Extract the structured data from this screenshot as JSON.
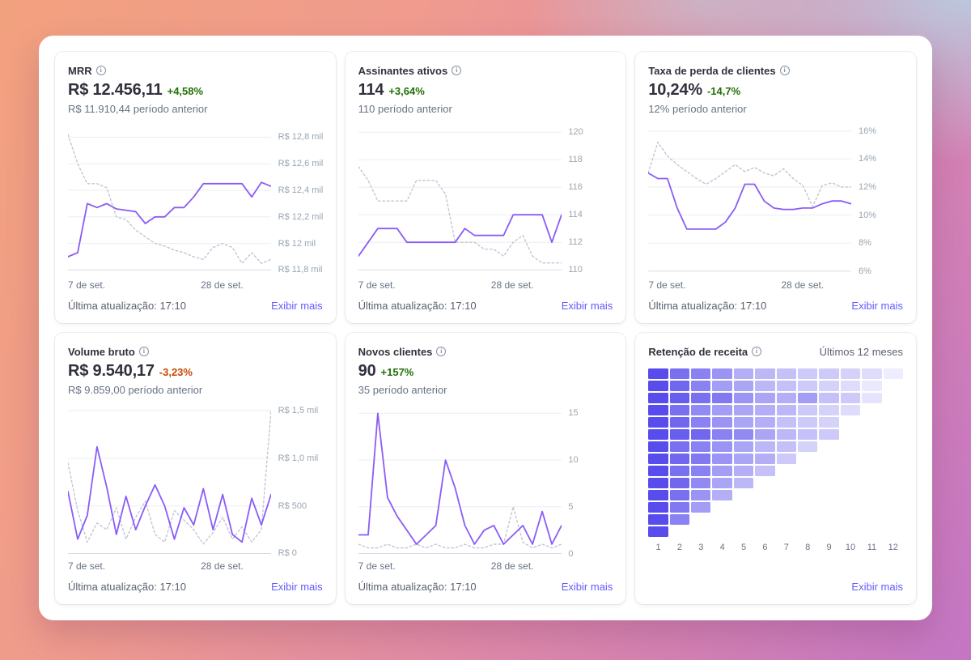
{
  "colors": {
    "link": "#635bff",
    "positive": "#217005",
    "negative": "#c84801",
    "chart_current": "#8a5cf6",
    "chart_previous": "#c0c7d2",
    "heatmap_base_rgb": "88,76,236"
  },
  "cards": [
    {
      "id": "mrr",
      "title": "MRR",
      "value": "R$ 12.456,11",
      "delta": "+4,58%",
      "delta_color": "#217005",
      "subtitle": "R$ 11.910,44 período anterior",
      "footer_left": "Última atualização: 17:10",
      "footer_link": "Exibir mais",
      "chart": {
        "type": "line",
        "ylim": [
          11.76,
          12.9
        ],
        "ticks": [
          {
            "v": 12.8,
            "label": "R$ 12,8 mil"
          },
          {
            "v": 12.6,
            "label": "R$ 12,6 mil"
          },
          {
            "v": 12.4,
            "label": "R$ 12,4 mil"
          },
          {
            "v": 12.2,
            "label": "R$ 12,2 mil"
          },
          {
            "v": 12.0,
            "label": "R$ 12 mil"
          },
          {
            "v": 11.8,
            "label": "R$ 11,8 mil"
          }
        ],
        "x_labels": [
          "7 de set.",
          "28 de set."
        ],
        "series": [
          {
            "name": "período anterior",
            "color": "#c0c7d2",
            "dashed": true,
            "values": [
              12.82,
              12.6,
              12.45,
              12.45,
              12.42,
              12.2,
              12.18,
              12.1,
              12.05,
              12.0,
              11.98,
              11.95,
              11.93,
              11.9,
              11.88,
              11.97,
              12.0,
              11.97,
              11.85,
              11.93,
              11.85,
              11.88
            ]
          },
          {
            "name": "período atual",
            "color": "#8a5cf6",
            "dashed": false,
            "values": [
              11.9,
              11.93,
              12.3,
              12.27,
              12.3,
              12.26,
              12.25,
              12.24,
              12.15,
              12.2,
              12.2,
              12.27,
              12.27,
              12.35,
              12.45,
              12.45,
              12.45,
              12.45,
              12.45,
              12.35,
              12.46,
              12.43
            ]
          }
        ]
      }
    },
    {
      "id": "assinantes-ativos",
      "title": "Assinantes ativos",
      "value": "114",
      "delta": "+3,64%",
      "delta_color": "#217005",
      "subtitle": "110 período anterior",
      "footer_left": "Última atualização: 17:10",
      "footer_link": "Exibir mais",
      "chart": {
        "type": "line",
        "ylim": [
          109.6,
          120.6
        ],
        "ticks": [
          {
            "v": 120,
            "label": "120"
          },
          {
            "v": 118,
            "label": "118"
          },
          {
            "v": 116,
            "label": "116"
          },
          {
            "v": 114,
            "label": "114"
          },
          {
            "v": 112,
            "label": "112"
          },
          {
            "v": 110,
            "label": "110"
          }
        ],
        "x_labels": [
          "7 de set.",
          "28 de set."
        ],
        "series": [
          {
            "name": "período anterior",
            "color": "#c0c7d2",
            "dashed": true,
            "values": [
              117.5,
              116.5,
              115,
              115,
              115,
              115,
              116.5,
              116.5,
              116.5,
              115.5,
              112,
              112,
              112,
              111.5,
              111.5,
              111,
              112,
              112.5,
              111,
              110.5,
              110.5,
              110.5
            ]
          },
          {
            "name": "período atual",
            "color": "#8a5cf6",
            "dashed": false,
            "values": [
              111,
              112,
              113,
              113,
              113,
              112,
              112,
              112,
              112,
              112,
              112,
              113,
              112.5,
              112.5,
              112.5,
              112.5,
              114,
              114,
              114,
              114,
              112,
              114
            ]
          }
        ]
      }
    },
    {
      "id": "taxa-perda-clientes",
      "title": "Taxa de perda de clientes",
      "value": "10,24%",
      "delta": "-14,7%",
      "delta_color": "#217005",
      "subtitle": "12% período anterior",
      "footer_left": "Última atualização: 17:10",
      "footer_link": "Exibir mais",
      "chart": {
        "type": "line",
        "ylim": [
          5.7,
          16.5
        ],
        "ticks": [
          {
            "v": 16,
            "label": "16%"
          },
          {
            "v": 14,
            "label": "14%"
          },
          {
            "v": 12,
            "label": "12%"
          },
          {
            "v": 10,
            "label": "10%"
          },
          {
            "v": 8,
            "label": "8%"
          },
          {
            "v": 6,
            "label": "6%"
          }
        ],
        "x_labels": [
          "7 de set.",
          "28 de set."
        ],
        "series": [
          {
            "name": "período anterior",
            "color": "#c0c7d2",
            "dashed": true,
            "values": [
              13,
              15.2,
              14.2,
              13.6,
              13.1,
              12.6,
              12.2,
              12.6,
              13.1,
              13.6,
              13.1,
              13.4,
              13,
              12.8,
              13.3,
              12.6,
              12.1,
              10.6,
              12.1,
              12.3,
              12,
              12
            ]
          },
          {
            "name": "período atual",
            "color": "#8a5cf6",
            "dashed": false,
            "values": [
              13,
              12.6,
              12.6,
              10.5,
              9,
              9,
              9,
              9,
              9.5,
              10.5,
              12.2,
              12.2,
              11,
              10.5,
              10.4,
              10.4,
              10.5,
              10.5,
              10.8,
              11,
              11,
              10.8
            ]
          }
        ]
      }
    },
    {
      "id": "volume-bruto",
      "title": "Volume bruto",
      "value": "R$ 9.540,17",
      "delta": "-3,23%",
      "delta_color": "#c84801",
      "subtitle": "R$ 9.859,00 período anterior",
      "footer_left": "Última atualização: 17:10",
      "footer_link": "Exibir mais",
      "chart": {
        "type": "line",
        "ylim": [
          -0.03,
          1.56
        ],
        "ticks": [
          {
            "v": 1.5,
            "label": "R$ 1,5 mil"
          },
          {
            "v": 1.0,
            "label": "R$ 1,0 mil"
          },
          {
            "v": 0.5,
            "label": "R$ 500"
          },
          {
            "v": 0,
            "label": "R$ 0"
          }
        ],
        "x_labels": [
          "7 de set.",
          "28 de set."
        ],
        "series": [
          {
            "name": "período anterior",
            "color": "#c0c7d2",
            "dashed": true,
            "values": [
              0.95,
              0.45,
              0.12,
              0.32,
              0.25,
              0.48,
              0.15,
              0.38,
              0.55,
              0.2,
              0.12,
              0.45,
              0.35,
              0.25,
              0.1,
              0.22,
              0.38,
              0.15,
              0.28,
              0.12,
              0.25,
              1.5
            ]
          },
          {
            "name": "período atual",
            "color": "#8a5cf6",
            "dashed": false,
            "values": [
              0.65,
              0.15,
              0.4,
              1.12,
              0.7,
              0.2,
              0.6,
              0.25,
              0.5,
              0.72,
              0.5,
              0.15,
              0.48,
              0.3,
              0.68,
              0.25,
              0.62,
              0.2,
              0.12,
              0.58,
              0.3,
              0.62
            ]
          }
        ]
      }
    },
    {
      "id": "novos-clientes",
      "title": "Novos clientes",
      "value": "90",
      "delta": "+157%",
      "delta_color": "#217005",
      "subtitle": "35 período anterior",
      "footer_left": "Última atualização: 17:10",
      "footer_link": "Exibir mais",
      "chart": {
        "type": "line",
        "ylim": [
          -0.3,
          15.9
        ],
        "ticks": [
          {
            "v": 15,
            "label": "15"
          },
          {
            "v": 10,
            "label": "10"
          },
          {
            "v": 5,
            "label": "5"
          },
          {
            "v": 0,
            "label": "0"
          }
        ],
        "x_labels": [
          "7 de set.",
          "28 de set."
        ],
        "series": [
          {
            "name": "período anterior",
            "color": "#c0c7d2",
            "dashed": true,
            "values": [
              1,
              0.6,
              0.6,
              1,
              0.6,
              0.6,
              1,
              0.6,
              1,
              0.6,
              0.6,
              1,
              0.6,
              0.6,
              1,
              1,
              5,
              1.2,
              0.6,
              1,
              0.6,
              1
            ]
          },
          {
            "name": "período atual",
            "color": "#8a5cf6",
            "dashed": false,
            "values": [
              2,
              2,
              15,
              6,
              4,
              2.5,
              1,
              2,
              3,
              10,
              7,
              3,
              1,
              2.5,
              3,
              1,
              2,
              3,
              1,
              4.5,
              1,
              3
            ]
          }
        ]
      }
    },
    {
      "id": "retencao-receita",
      "title": "Retenção de receita",
      "header_right": "Últimos 12 meses",
      "footer_link": "Exibir mais",
      "chart": {
        "type": "heatmap",
        "base_rgb": "88,76,236",
        "x_labels": [
          "1",
          "2",
          "3",
          "4",
          "5",
          "6",
          "7",
          "8",
          "9",
          "10",
          "11",
          "12"
        ],
        "rows": [
          [
            1,
            0.8,
            0.7,
            0.6,
            0.45,
            0.4,
            0.35,
            0.3,
            0.3,
            0.25,
            0.2,
            0.1
          ],
          [
            1,
            0.85,
            0.7,
            0.55,
            0.5,
            0.4,
            0.35,
            0.3,
            0.25,
            0.2,
            0.12
          ],
          [
            1,
            0.9,
            0.8,
            0.75,
            0.6,
            0.5,
            0.45,
            0.55,
            0.35,
            0.3,
            0.15
          ],
          [
            1,
            0.8,
            0.65,
            0.55,
            0.5,
            0.45,
            0.4,
            0.3,
            0.25,
            0.2
          ],
          [
            1,
            0.85,
            0.7,
            0.6,
            0.5,
            0.45,
            0.35,
            0.3,
            0.25
          ],
          [
            1,
            0.9,
            0.85,
            0.7,
            0.65,
            0.5,
            0.4,
            0.35,
            0.3
          ],
          [
            1,
            0.8,
            0.7,
            0.6,
            0.5,
            0.4,
            0.35,
            0.25
          ],
          [
            1,
            0.85,
            0.75,
            0.6,
            0.5,
            0.45,
            0.3
          ],
          [
            1,
            0.8,
            0.7,
            0.55,
            0.45,
            0.35
          ],
          [
            1,
            0.85,
            0.65,
            0.5,
            0.4
          ],
          [
            1,
            0.8,
            0.6,
            0.45
          ],
          [
            1,
            0.75,
            0.55
          ],
          [
            1,
            0.7
          ],
          [
            1
          ]
        ]
      }
    }
  ]
}
